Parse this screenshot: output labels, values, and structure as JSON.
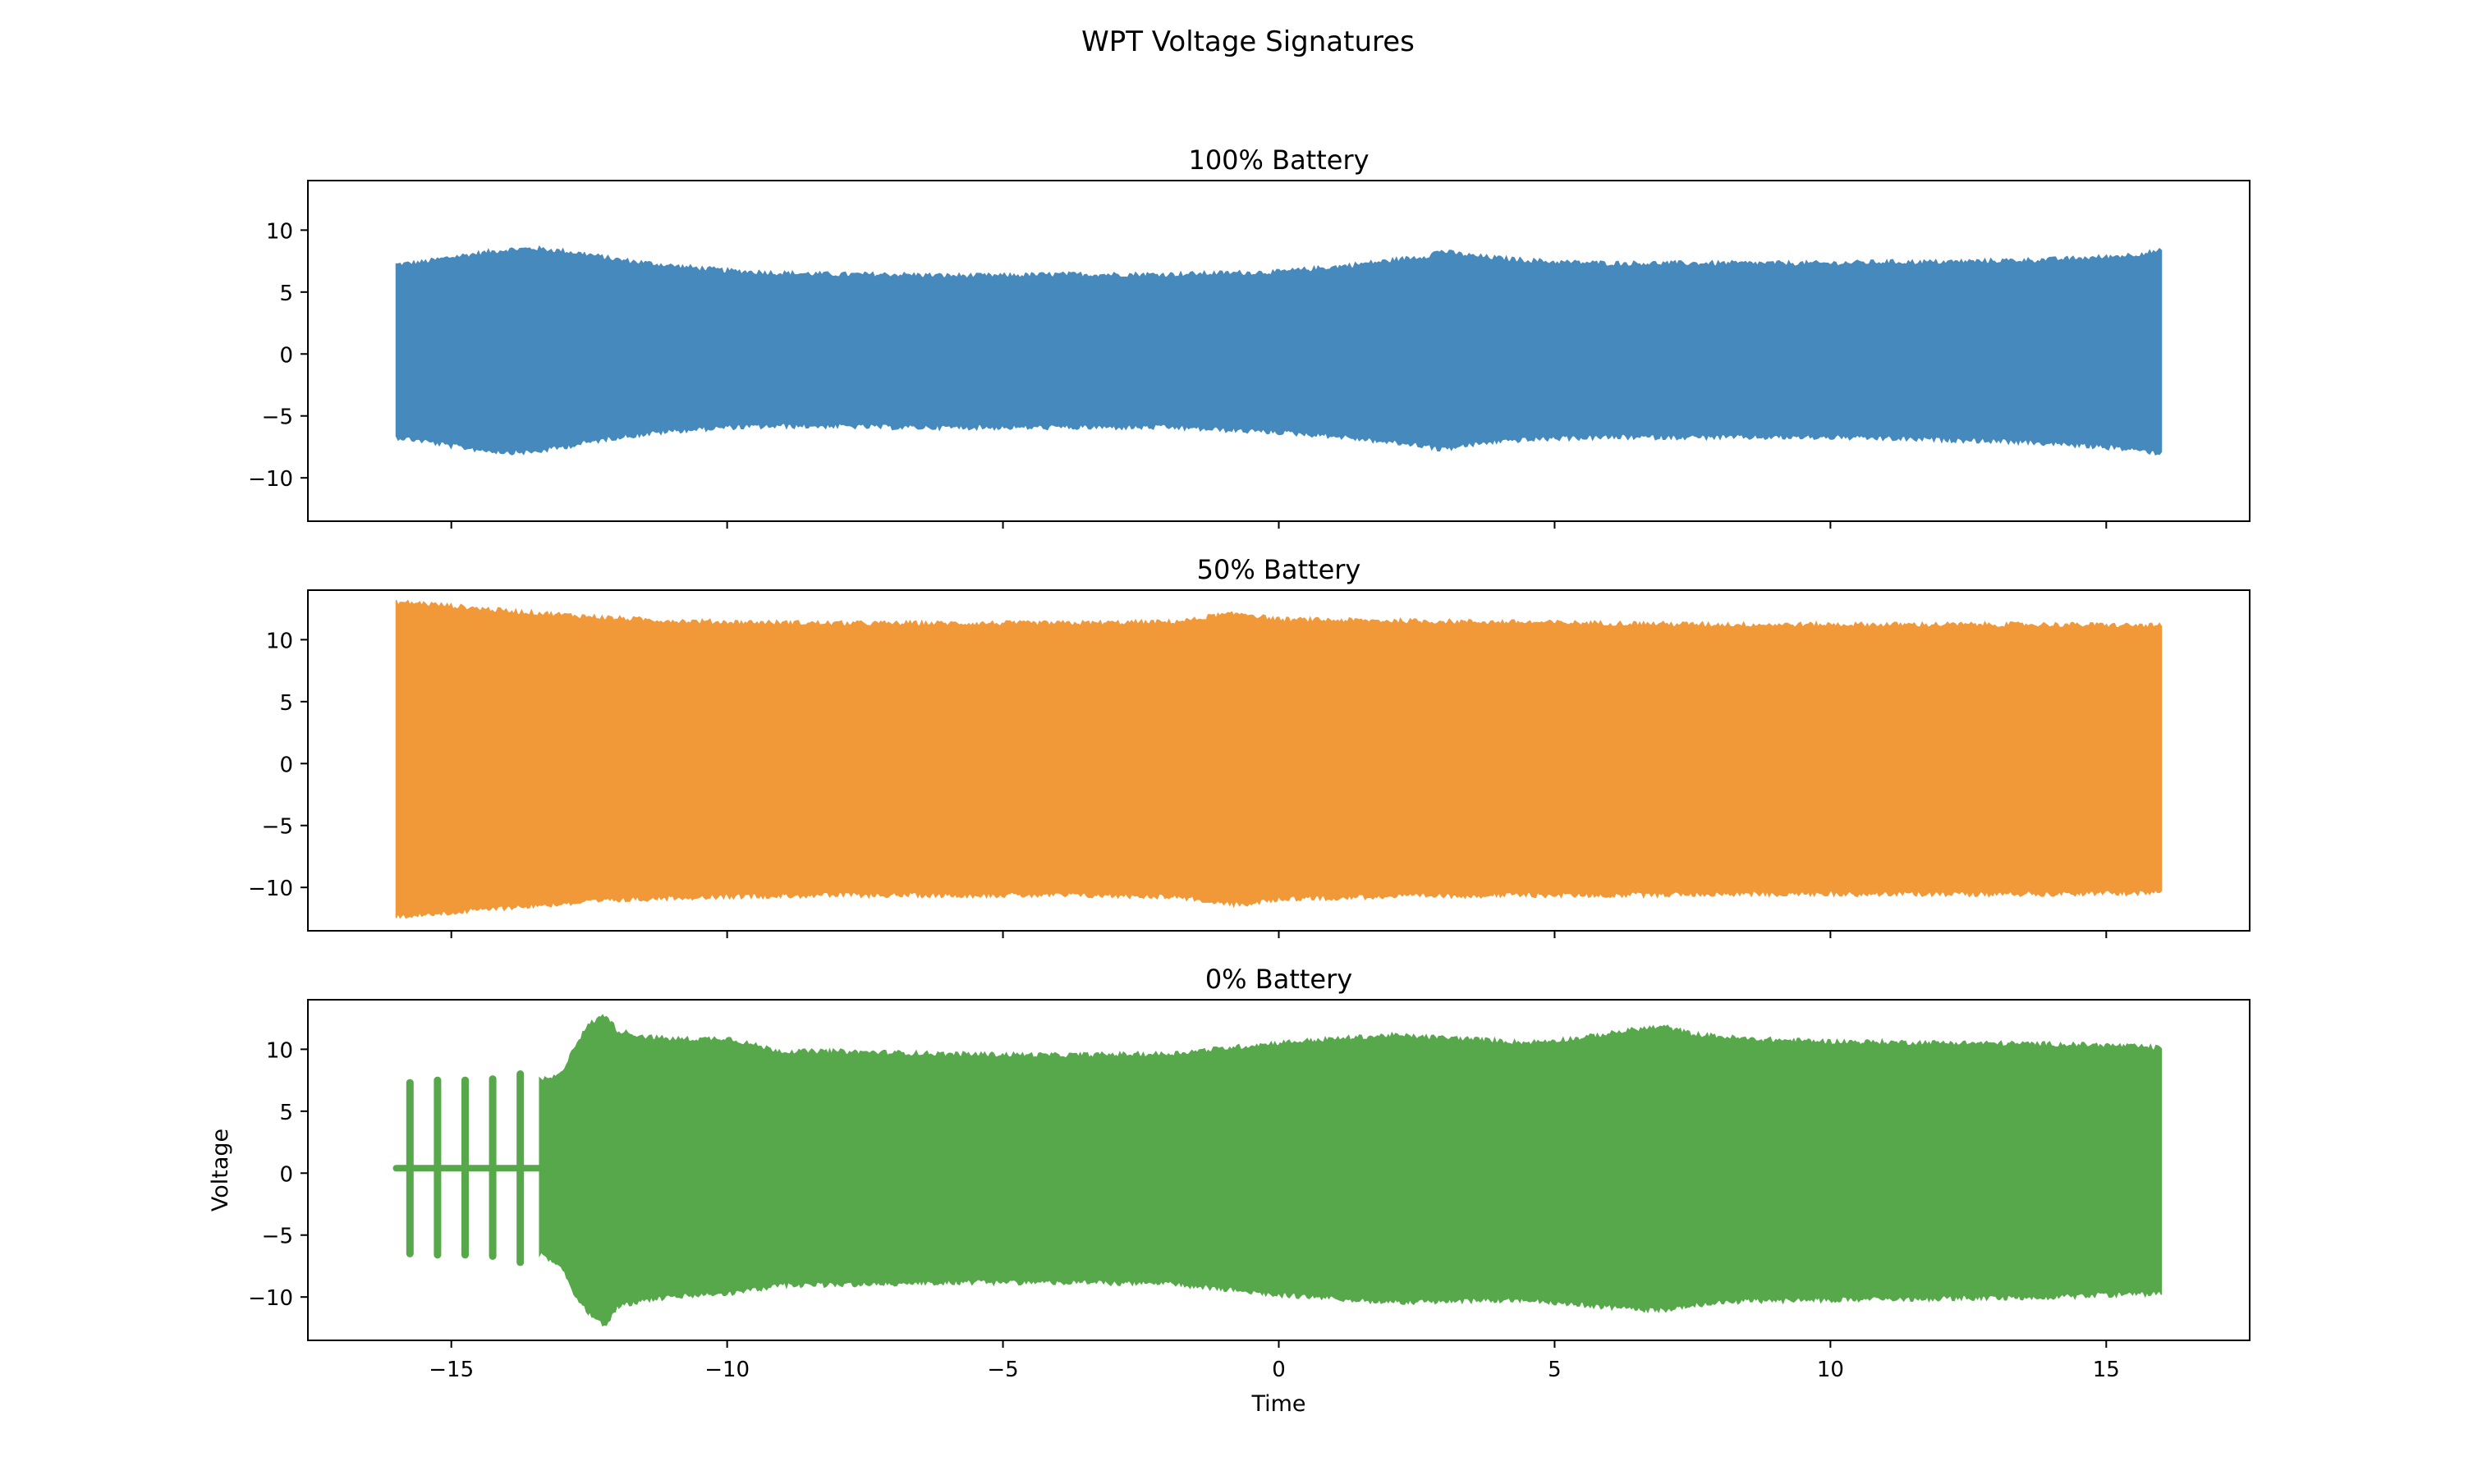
{
  "figure": {
    "title": "WPT Voltage Signatures"
  },
  "chart_data": [
    {
      "type": "line",
      "title": "100% Battery",
      "xlabel": "",
      "ylabel": "",
      "xlim": [
        -17.6,
        17.6
      ],
      "ylim": [
        -13.5,
        14.0
      ],
      "x_ticks": [
        -15,
        -10,
        -5,
        0,
        5,
        10,
        15
      ],
      "x_tick_labels": [],
      "y_ticks": [
        -10,
        -5,
        0,
        5,
        10
      ],
      "y_tick_labels": [
        "−10",
        "−5",
        "0",
        "5",
        "10"
      ],
      "grid": false,
      "color": "#4689bc",
      "signal_range": [
        -16,
        16
      ],
      "series": [
        {
          "envelope_x": [
            -16.0,
            -15.5,
            -15.0,
            -14.5,
            -14.0,
            -13.5,
            -13.0,
            -12.5,
            -12.0,
            -11.0,
            -10.0,
            -9.0,
            -8.0,
            -7.0,
            -6.0,
            -5.0,
            -4.0,
            -3.0,
            -2.0,
            -1.0,
            0.0,
            1.0,
            2.0,
            2.7,
            2.9,
            3.5,
            4.0,
            5.0,
            6.0,
            7.0,
            8.0,
            9.0,
            10.0,
            11.0,
            12.0,
            13.0,
            14.0,
            15.0,
            15.5,
            16.0
          ],
          "upper": [
            7.2,
            7.4,
            7.8,
            8.1,
            8.4,
            8.5,
            8.3,
            8.0,
            7.6,
            7.1,
            6.7,
            6.5,
            6.4,
            6.4,
            6.3,
            6.3,
            6.4,
            6.4,
            6.4,
            6.5,
            6.6,
            7.0,
            7.5,
            7.9,
            8.3,
            7.9,
            7.7,
            7.4,
            7.3,
            7.3,
            7.3,
            7.3,
            7.3,
            7.4,
            7.4,
            7.5,
            7.6,
            7.8,
            8.0,
            8.3
          ],
          "lower": [
            -6.7,
            -7.0,
            -7.4,
            -7.7,
            -7.9,
            -7.9,
            -7.5,
            -7.1,
            -6.7,
            -6.2,
            -5.9,
            -5.8,
            -5.8,
            -5.9,
            -5.9,
            -5.9,
            -5.9,
            -5.9,
            -5.9,
            -6.1,
            -6.3,
            -6.6,
            -7.1,
            -7.4,
            -7.7,
            -7.3,
            -7.0,
            -6.8,
            -6.7,
            -6.7,
            -6.7,
            -6.7,
            -6.7,
            -6.8,
            -6.9,
            -7.0,
            -7.2,
            -7.5,
            -7.7,
            -8.0
          ]
        }
      ]
    },
    {
      "type": "line",
      "title": "50% Battery",
      "xlabel": "",
      "ylabel": "",
      "xlim": [
        -17.6,
        17.6
      ],
      "ylim": [
        -13.5,
        14.0
      ],
      "x_ticks": [
        -15,
        -10,
        -5,
        0,
        5,
        10,
        15
      ],
      "x_tick_labels": [],
      "y_ticks": [
        -10,
        -5,
        0,
        5,
        10
      ],
      "y_tick_labels": [
        "−10",
        "−5",
        "0",
        "5",
        "10"
      ],
      "grid": false,
      "color": "#f19839",
      "signal_range": [
        -16,
        16
      ],
      "series": [
        {
          "envelope_x": [
            -16.0,
            -15.5,
            -15.0,
            -14.0,
            -13.0,
            -12.0,
            -11.0,
            -10.0,
            -8.0,
            -6.0,
            -4.0,
            -2.0,
            -1.5,
            -1.2,
            -0.6,
            -0.3,
            0.0,
            2.0,
            4.0,
            6.0,
            8.0,
            10.0,
            12.0,
            14.0,
            16.0
          ],
          "upper": [
            13.0,
            12.9,
            12.7,
            12.3,
            12.0,
            11.7,
            11.5,
            11.4,
            11.3,
            11.3,
            11.3,
            11.4,
            11.6,
            11.9,
            12.1,
            11.8,
            11.6,
            11.5,
            11.4,
            11.3,
            11.2,
            11.2,
            11.2,
            11.2,
            11.1
          ],
          "lower": [
            -12.3,
            -12.2,
            -12.0,
            -11.6,
            -11.3,
            -11.0,
            -10.8,
            -10.7,
            -10.6,
            -10.6,
            -10.6,
            -10.7,
            -10.9,
            -11.2,
            -11.4,
            -11.1,
            -10.9,
            -10.7,
            -10.6,
            -10.6,
            -10.5,
            -10.5,
            -10.5,
            -10.5,
            -10.4
          ]
        }
      ]
    },
    {
      "type": "line",
      "title": "0% Battery",
      "xlabel": "Time",
      "ylabel": "Voltage",
      "xlim": [
        -17.6,
        17.6
      ],
      "ylim": [
        -13.5,
        14.0
      ],
      "x_ticks": [
        -15,
        -10,
        -5,
        0,
        5,
        10,
        15
      ],
      "x_tick_labels": [
        "−15",
        "−10",
        "−5",
        "0",
        "5",
        "10",
        "15"
      ],
      "y_ticks": [
        -10,
        -5,
        0,
        5,
        10
      ],
      "y_tick_labels": [
        "−10",
        "−5",
        "0",
        "5",
        "10"
      ],
      "grid": false,
      "color": "#56a84b",
      "baseline_segment": {
        "x_start": -16.0,
        "x_end": -13.4,
        "y": 0.4
      },
      "pulses": [
        {
          "x": -15.75,
          "top": 7.3,
          "bottom": -6.5
        },
        {
          "x": -15.25,
          "top": 7.5,
          "bottom": -6.6
        },
        {
          "x": -14.75,
          "top": 7.5,
          "bottom": -6.6
        },
        {
          "x": -14.25,
          "top": 7.6,
          "bottom": -6.7
        },
        {
          "x": -13.75,
          "top": 8.0,
          "bottom": -7.2
        }
      ],
      "series": [
        {
          "envelope_x": [
            -13.4,
            -13.2,
            -13.0,
            -12.8,
            -12.5,
            -12.2,
            -12.0,
            -11.5,
            -11.0,
            -10.5,
            -10.0,
            -9.5,
            -9.0,
            -8.0,
            -6.0,
            -4.0,
            -2.0,
            0.0,
            2.0,
            3.5,
            4.5,
            5.5,
            6.5,
            7.0,
            7.5,
            8.5,
            10.0,
            12.0,
            14.0,
            15.0,
            16.0
          ],
          "upper": [
            7.5,
            7.6,
            8.0,
            10.0,
            12.0,
            12.8,
            11.5,
            11.0,
            10.8,
            10.8,
            10.9,
            10.3,
            9.8,
            9.8,
            9.6,
            9.5,
            9.6,
            10.5,
            11.1,
            10.8,
            10.5,
            10.9,
            11.6,
            11.8,
            11.2,
            10.8,
            10.6,
            10.5,
            10.4,
            10.3,
            10.1
          ],
          "lower": [
            -6.5,
            -7.0,
            -7.5,
            -9.5,
            -11.3,
            -12.3,
            -10.8,
            -10.2,
            -10.0,
            -9.8,
            -9.7,
            -9.4,
            -9.0,
            -9.0,
            -8.8,
            -8.8,
            -8.9,
            -9.8,
            -10.4,
            -10.3,
            -10.2,
            -10.6,
            -11.0,
            -11.0,
            -10.6,
            -10.3,
            -10.2,
            -10.1,
            -10.0,
            -9.8,
            -9.7
          ]
        }
      ]
    }
  ]
}
